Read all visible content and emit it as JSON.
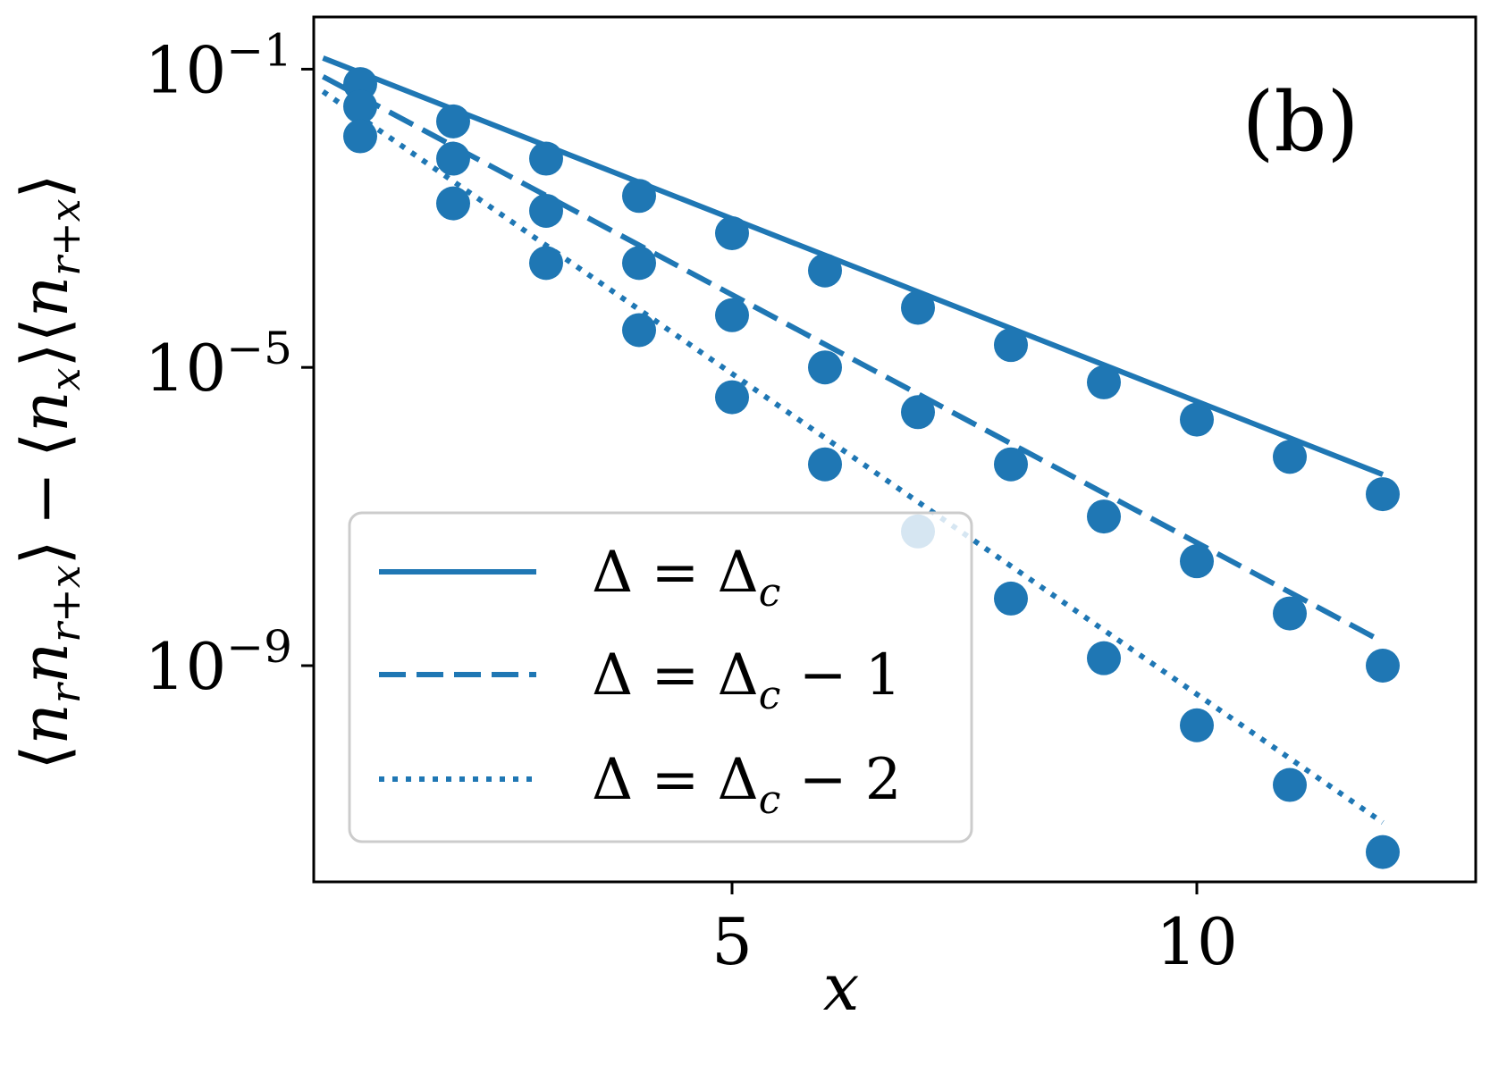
{
  "chart_data": {
    "type": "line",
    "panel_label": "(b)",
    "xlabel": "x",
    "ylabel": "⟨n_r n_{r+x}⟩ − ⟨n_x⟩⟨n_{r+x}⟩",
    "ylabel_parts": {
      "lb1": "⟨",
      "n1": "n",
      "r1": "r",
      "n2": "n",
      "rx1": "r+x",
      "rb1": "⟩",
      "minus": "−",
      "lb2": "⟨",
      "n3": "n",
      "x1": "x",
      "rb2": "⟩",
      "lb3": "⟨",
      "n4": "n",
      "rx2": "r+x",
      "rb3": "⟩"
    },
    "y_scale": "log",
    "xlim": [
      0.5,
      13.0
    ],
    "ylim_exponent": [
      -11.9,
      -0.3
    ],
    "x_ticks": [
      5,
      10
    ],
    "x_tick_labels": [
      "5",
      "10"
    ],
    "y_ticks": [
      {
        "exp": -1,
        "base": "10",
        "sup": "−1"
      },
      {
        "exp": -5,
        "base": "10",
        "sup": "−5"
      },
      {
        "exp": -9,
        "base": "10",
        "sup": "−9"
      }
    ],
    "color": "#1f77b4",
    "legend_position": "lower-left",
    "x": [
      1,
      2,
      3,
      4,
      5,
      6,
      7,
      8,
      9,
      10,
      11,
      12
    ],
    "series": [
      {
        "name": "Δ = Δ_c",
        "dash": "solid",
        "y_log10": [
          -1.2,
          -1.7,
          -2.2,
          -2.7,
          -3.2,
          -3.7,
          -4.2,
          -4.7,
          -5.2,
          -5.7,
          -6.2,
          -6.7
        ],
        "fit_log10_at_0_6": -0.85,
        "fit_slope": -0.49
      },
      {
        "name": "Δ = Δ_c − 1",
        "dash": "dashed",
        "y_log10": [
          -1.5,
          -2.2,
          -2.9,
          -3.6,
          -4.3,
          -5.0,
          -5.6,
          -6.3,
          -7.0,
          -7.6,
          -8.3,
          -9.0
        ],
        "fit_log10_at_0_6": -1.1,
        "fit_slope": -0.665
      },
      {
        "name": "Δ = Δ_c − 2",
        "dash": "dotted",
        "y_log10": [
          -1.9,
          -2.8,
          -3.6,
          -4.5,
          -5.4,
          -6.3,
          -7.2,
          -8.1,
          -8.9,
          -9.8,
          -10.6,
          -11.5
        ],
        "fit_log10_at_0_6": -1.3,
        "fit_slope": -0.86
      }
    ],
    "legend_entries": [
      {
        "lhs": "Δ = Δ",
        "sub": "c",
        "rhs": ""
      },
      {
        "lhs": "Δ = Δ",
        "sub": "c",
        "rhs": " − 1"
      },
      {
        "lhs": "Δ = Δ",
        "sub": "c",
        "rhs": " − 2"
      }
    ]
  }
}
